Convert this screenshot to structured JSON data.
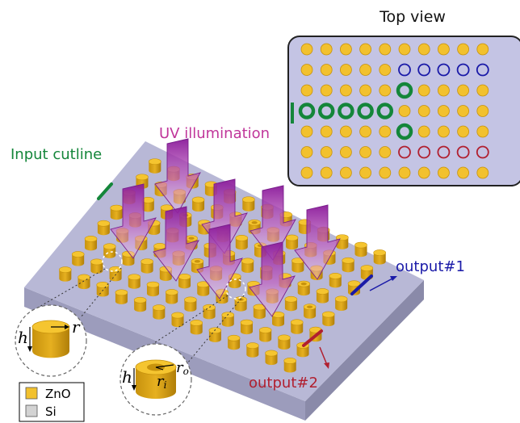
{
  "top_view": {
    "title": "Top view",
    "rows": [
      "YYYYYYYYYY",
      "YYYYYBBBBB",
      "YYYYYGYYYY",
      "GGGGGYYYYY",
      "YYYYYGYYYY",
      "YYYYYRRRRR",
      "YYYYYYYYYY"
    ],
    "legend_codes": {
      "Y": "solid ZnO pillar",
      "B": "blue ring",
      "G": "green ring",
      "R": "red ring"
    }
  },
  "labels": {
    "uv": "UV illumination",
    "input": "Input cutline",
    "output1": "output#1",
    "output2": "output#2"
  },
  "insets": {
    "pillar": {
      "h": "h",
      "r": "r"
    },
    "ring": {
      "h": "h",
      "ro": "r",
      "ro_sub": "o",
      "ri": "r",
      "ri_sub": "i"
    }
  },
  "legend": [
    {
      "label": "ZnO",
      "color": "#f2c12e"
    },
    {
      "label": "Si",
      "color": "#d3d3d3"
    }
  ],
  "colors": {
    "slab_top": "#b8b8d6",
    "slab_front": "#9c9cbc",
    "slab_side": "#8a8aa9",
    "panel_bg": "#c4c4e4",
    "yellow": "#f2c12e",
    "yellow_dark": "#c7920d",
    "green": "#14863a",
    "blue": "#1a1aa8",
    "red": "#b11f2f",
    "magenta": "#c0369a",
    "purple": "#7a1e8c"
  }
}
